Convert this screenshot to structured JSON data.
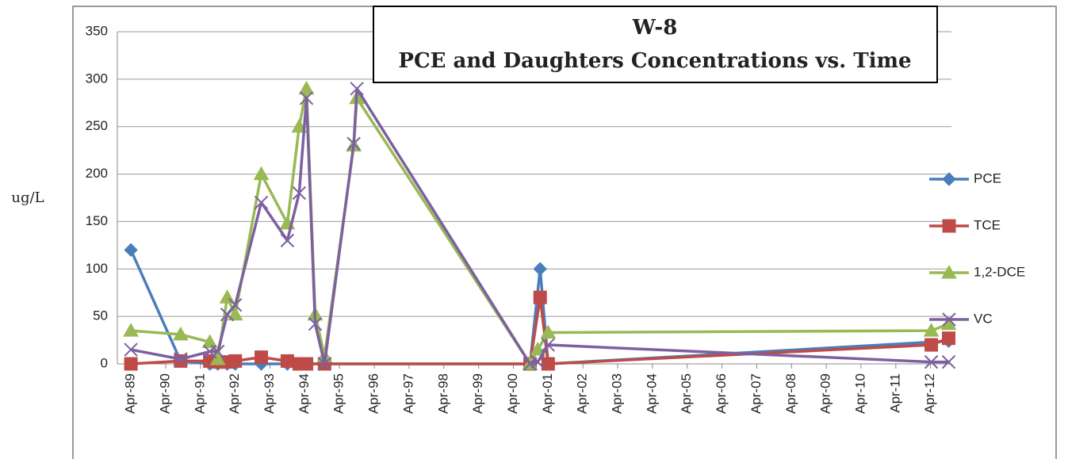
{
  "chart_data": {
    "type": "line",
    "title": "W-8",
    "subtitle": "PCE and Daughters Concentrations vs. Time",
    "y_label": "ug/L",
    "xlim": [
      1988.86,
      2012.85
    ],
    "xticks": [
      {
        "value": 1989.25,
        "label": "Apr-89"
      },
      {
        "value": 1990.25,
        "label": "Apr-90"
      },
      {
        "value": 1991.25,
        "label": "Apr-91"
      },
      {
        "value": 1992.25,
        "label": "Apr-92"
      },
      {
        "value": 1993.25,
        "label": "Apr-93"
      },
      {
        "value": 1994.25,
        "label": "Apr-94"
      },
      {
        "value": 1995.25,
        "label": "Apr-95"
      },
      {
        "value": 1996.25,
        "label": "Apr-96"
      },
      {
        "value": 1997.25,
        "label": "Apr-97"
      },
      {
        "value": 1998.25,
        "label": "Apr-98"
      },
      {
        "value": 1999.25,
        "label": "Apr-99"
      },
      {
        "value": 2000.25,
        "label": "Apr-00"
      },
      {
        "value": 2001.25,
        "label": "Apr-01"
      },
      {
        "value": 2002.25,
        "label": "Apr-02"
      },
      {
        "value": 2003.25,
        "label": "Apr-03"
      },
      {
        "value": 2004.25,
        "label": "Apr-04"
      },
      {
        "value": 2005.25,
        "label": "Apr-05"
      },
      {
        "value": 2006.25,
        "label": "Apr-06"
      },
      {
        "value": 2007.25,
        "label": "Apr-07"
      },
      {
        "value": 2008.25,
        "label": "Apr-08"
      },
      {
        "value": 2009.25,
        "label": "Apr-09"
      },
      {
        "value": 2010.25,
        "label": "Apr-10"
      },
      {
        "value": 2011.25,
        "label": "Apr-11"
      },
      {
        "value": 2012.25,
        "label": "Apr-12"
      }
    ],
    "ylim": [
      0,
      350
    ],
    "yticks": [
      0,
      50,
      100,
      150,
      200,
      250,
      300,
      350
    ],
    "grid": true,
    "legend": "right",
    "series": [
      {
        "name": "PCE",
        "color": "#4a7ebb",
        "marker": "diamond",
        "x": [
          1989.25,
          1990.68,
          1991.52,
          1991.75,
          1992.02,
          1992.25,
          1993.0,
          1993.75,
          1994.3,
          1994.82,
          2000.73,
          2001.02,
          2001.25,
          2012.77
        ],
        "values": [
          120,
          3,
          0,
          0,
          0,
          0,
          0,
          0,
          0,
          0,
          0,
          100,
          0,
          24
        ]
      },
      {
        "name": "TCE",
        "color": "#be4b48",
        "marker": "square",
        "x": [
          1989.25,
          1990.68,
          1991.52,
          1991.75,
          1992.02,
          1992.25,
          1993.0,
          1993.75,
          1994.09,
          1994.3,
          1994.82,
          2000.73,
          2001.02,
          2001.25,
          2012.27,
          2012.77
        ],
        "values": [
          0,
          3,
          3,
          2,
          2,
          3,
          7,
          3,
          0,
          0,
          0,
          0,
          70,
          0,
          20,
          27
        ]
      },
      {
        "name": "1,2-DCE",
        "color": "#98b954",
        "marker": "triangle",
        "x": [
          1989.25,
          1990.68,
          1991.52,
          1991.75,
          1992.02,
          1992.25,
          1993.0,
          1993.75,
          1994.09,
          1994.3,
          1994.55,
          1994.82,
          1995.66,
          1995.75,
          2000.73,
          2000.95,
          2001.25,
          2012.27,
          2012.77
        ],
        "values": [
          35,
          31,
          23,
          5,
          70,
          52,
          200,
          148,
          250,
          290,
          52,
          8,
          230,
          280,
          0,
          15,
          33,
          35,
          42
        ]
      },
      {
        "name": "VC",
        "color": "#7d60a0",
        "marker": "x",
        "x": [
          1989.25,
          1990.68,
          1991.52,
          1991.75,
          1992.02,
          1992.25,
          1993.0,
          1993.75,
          1994.09,
          1994.3,
          1994.55,
          1994.82,
          1995.66,
          1995.75,
          2000.73,
          2000.95,
          2001.25,
          2012.27,
          2012.77
        ],
        "values": [
          15,
          5,
          13,
          13,
          52,
          62,
          170,
          130,
          180,
          280,
          42,
          0,
          232,
          290,
          0,
          2,
          20,
          2,
          2
        ]
      }
    ]
  }
}
